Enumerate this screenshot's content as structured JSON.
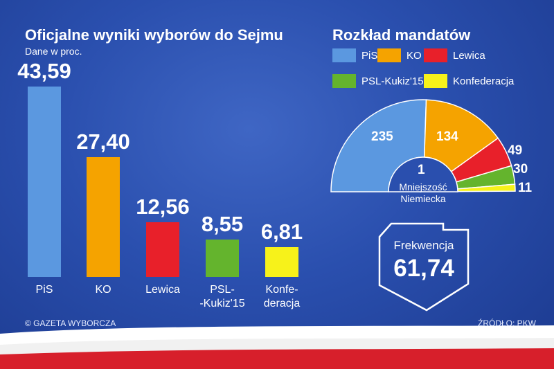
{
  "chart_data": [
    {
      "type": "bar",
      "title": "Oficjalne wyniki wyborów do Sejmu",
      "subtitle": "Dane w proc.",
      "categories": [
        "PiS",
        "KO",
        "Lewica",
        "PSL-\n-Kukiz'15",
        "Konfe-\nderacja"
      ],
      "values": [
        43.59,
        27.4,
        12.56,
        8.55,
        6.81
      ],
      "value_labels": [
        "43,59",
        "27,40",
        "12,56",
        "8,55",
        "6,81"
      ],
      "colors": [
        "#5b98e0",
        "#f5a300",
        "#e8202a",
        "#64b42d",
        "#f7f21a"
      ],
      "ylim": [
        0,
        43.59
      ]
    },
    {
      "type": "pie",
      "subtype": "semicircle-parliament",
      "title": "Rozkład mandatów",
      "legend": [
        {
          "name": "PiS",
          "color": "#5b98e0"
        },
        {
          "name": "KO",
          "color": "#f5a300"
        },
        {
          "name": "Lewica",
          "color": "#e8202a"
        },
        {
          "name": "PSL-Kukiz'15",
          "color": "#64b42d"
        },
        {
          "name": "Konfederacja",
          "color": "#f7f21a"
        }
      ],
      "seats": [
        235,
        134,
        49,
        30,
        11
      ],
      "minority": {
        "value": 1,
        "label_line1": "Mniejszość",
        "label_line2": "Niemiecka"
      }
    }
  ],
  "turnout": {
    "label": "Frekwencja",
    "value": "61,74"
  },
  "footer": {
    "copyright": "© GAZETA WYBORCZA",
    "source": "ŹRÓDŁO: PKW"
  }
}
